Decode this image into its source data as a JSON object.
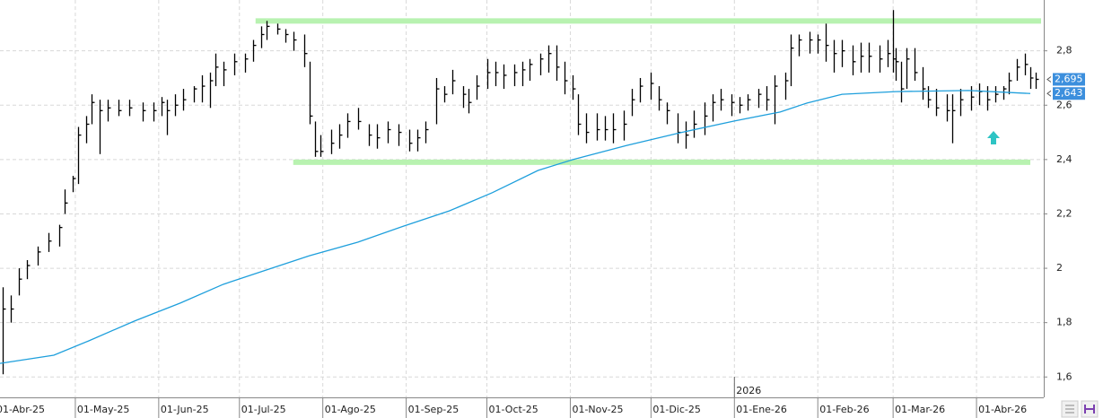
{
  "chart_data": {
    "type": "ohlc",
    "x": [
      3,
      6,
      9,
      12,
      16,
      20,
      24,
      26,
      29,
      31,
      34,
      36,
      39,
      42,
      46,
      50,
      55,
      59,
      62,
      64,
      67,
      70,
      74,
      77,
      80,
      82,
      85,
      89,
      93,
      96,
      99,
      101,
      105,
      108,
      111,
      115,
      117,
      119,
      121,
      125,
      128,
      131,
      135,
      139,
      142,
      146,
      150,
      154,
      157,
      160,
      164,
      167,
      170,
      174,
      176,
      179,
      183,
      186,
      189,
      193,
      196,
      199,
      203,
      206,
      209,
      212,
      215,
      217,
      220,
      224,
      227,
      230,
      234,
      237,
      240,
      244,
      247,
      250,
      254,
      257,
      260,
      264,
      267,
      270,
      274,
      277,
      280,
      284,
      287,
      290,
      294,
      296,
      299,
      303,
      306,
      309,
      312,
      315,
      319,
      322,
      325,
      329,
      332,
      334,
      335,
      337,
      339,
      342,
      345,
      347,
      350,
      354,
      356,
      359,
      363,
      366,
      369,
      372,
      375,
      377,
      380,
      383,
      385,
      387
    ],
    "high": [
      1.93,
      1.9,
      2.0,
      2.03,
      2.08,
      2.13,
      2.16,
      2.29,
      2.34,
      2.52,
      2.56,
      2.64,
      2.62,
      2.62,
      2.62,
      2.62,
      2.61,
      2.61,
      2.63,
      2.62,
      2.64,
      2.66,
      2.67,
      2.71,
      2.72,
      2.79,
      2.76,
      2.79,
      2.79,
      2.84,
      2.89,
      2.91,
      2.9,
      2.88,
      2.87,
      2.86,
      2.76,
      2.54,
      2.49,
      2.51,
      2.53,
      2.57,
      2.59,
      2.53,
      2.53,
      2.54,
      2.53,
      2.51,
      2.51,
      2.54,
      2.7,
      2.67,
      2.73,
      2.67,
      2.66,
      2.71,
      2.77,
      2.76,
      2.75,
      2.75,
      2.76,
      2.77,
      2.79,
      2.82,
      2.82,
      2.76,
      2.71,
      2.64,
      2.57,
      2.57,
      2.56,
      2.57,
      2.58,
      2.66,
      2.7,
      2.72,
      2.67,
      2.61,
      2.57,
      2.54,
      2.58,
      2.61,
      2.64,
      2.66,
      2.64,
      2.63,
      2.64,
      2.66,
      2.67,
      2.71,
      2.72,
      2.86,
      2.86,
      2.87,
      2.86,
      2.9,
      2.84,
      2.84,
      2.82,
      2.83,
      2.83,
      2.82,
      2.84,
      2.95,
      2.81,
      2.76,
      2.81,
      2.81,
      2.74,
      2.67,
      2.66,
      2.64,
      2.64,
      2.66,
      2.67,
      2.68,
      2.67,
      2.67,
      2.67,
      2.72,
      2.77,
      2.79,
      2.74,
      2.72
    ],
    "low": [
      1.61,
      1.8,
      1.9,
      1.96,
      2.01,
      2.06,
      2.08,
      2.2,
      2.28,
      2.31,
      2.46,
      2.53,
      2.42,
      2.54,
      2.56,
      2.56,
      2.54,
      2.54,
      2.56,
      2.49,
      2.56,
      2.58,
      2.61,
      2.61,
      2.59,
      2.67,
      2.67,
      2.71,
      2.72,
      2.76,
      2.81,
      2.84,
      2.86,
      2.83,
      2.8,
      2.74,
      2.53,
      2.41,
      2.41,
      2.42,
      2.44,
      2.48,
      2.51,
      2.45,
      2.44,
      2.46,
      2.45,
      2.43,
      2.43,
      2.46,
      2.53,
      2.61,
      2.64,
      2.59,
      2.57,
      2.62,
      2.66,
      2.67,
      2.66,
      2.67,
      2.67,
      2.69,
      2.71,
      2.72,
      2.69,
      2.64,
      2.62,
      2.49,
      2.46,
      2.47,
      2.47,
      2.46,
      2.47,
      2.56,
      2.61,
      2.62,
      2.58,
      2.53,
      2.46,
      2.44,
      2.48,
      2.49,
      2.54,
      2.58,
      2.56,
      2.57,
      2.58,
      2.59,
      2.58,
      2.53,
      2.62,
      2.67,
      2.78,
      2.79,
      2.79,
      2.76,
      2.72,
      2.74,
      2.71,
      2.72,
      2.72,
      2.72,
      2.74,
      2.72,
      2.69,
      2.61,
      2.66,
      2.69,
      2.62,
      2.59,
      2.56,
      2.54,
      2.46,
      2.56,
      2.58,
      2.6,
      2.58,
      2.61,
      2.62,
      2.64,
      2.69,
      2.71,
      2.66,
      2.66
    ],
    "close": [
      1.85,
      1.85,
      1.96,
      2.01,
      2.06,
      2.1,
      2.15,
      2.24,
      2.33,
      2.49,
      2.53,
      2.61,
      2.58,
      2.59,
      2.58,
      2.59,
      2.58,
      2.58,
      2.61,
      2.58,
      2.6,
      2.62,
      2.66,
      2.67,
      2.69,
      2.74,
      2.73,
      2.76,
      2.77,
      2.82,
      2.86,
      2.89,
      2.88,
      2.86,
      2.84,
      2.79,
      2.56,
      2.43,
      2.43,
      2.46,
      2.49,
      2.54,
      2.54,
      2.49,
      2.48,
      2.51,
      2.5,
      2.46,
      2.48,
      2.51,
      2.66,
      2.64,
      2.69,
      2.64,
      2.61,
      2.67,
      2.72,
      2.72,
      2.71,
      2.72,
      2.73,
      2.75,
      2.77,
      2.79,
      2.74,
      2.69,
      2.66,
      2.53,
      2.5,
      2.51,
      2.51,
      2.51,
      2.53,
      2.62,
      2.67,
      2.68,
      2.62,
      2.58,
      2.5,
      2.49,
      2.53,
      2.56,
      2.61,
      2.62,
      2.61,
      2.6,
      2.62,
      2.64,
      2.62,
      2.67,
      2.69,
      2.81,
      2.84,
      2.84,
      2.84,
      2.82,
      2.79,
      2.8,
      2.76,
      2.78,
      2.78,
      2.77,
      2.79,
      2.77,
      2.76,
      2.66,
      2.77,
      2.72,
      2.66,
      2.62,
      2.59,
      2.58,
      2.58,
      2.62,
      2.63,
      2.65,
      2.62,
      2.64,
      2.66,
      2.69,
      2.74,
      2.75,
      2.7,
      2.695
    ],
    "color": "#000000",
    "moving_average": {
      "x": [
        2,
        22,
        35,
        52,
        69,
        85,
        102,
        117,
        135,
        152,
        169,
        185,
        202,
        215,
        235,
        255,
        275,
        292,
        302,
        315,
        335,
        362,
        385
      ],
      "values": [
        1.65,
        1.68,
        1.733,
        1.806,
        1.872,
        1.941,
        1.997,
        2.046,
        2.096,
        2.155,
        2.211,
        2.278,
        2.36,
        2.4,
        2.452,
        2.499,
        2.542,
        2.575,
        2.608,
        2.64,
        2.65,
        2.654,
        2.643
      ],
      "color": "#1e9fdc"
    },
    "levels": [
      {
        "value": 2.91,
        "x": [
          97,
          389
        ]
      },
      {
        "value": 2.39,
        "x": [
          111,
          385
        ]
      }
    ],
    "level_color": "#b8f2b0",
    "last_labels": [
      {
        "value": 2.695,
        "label": "2,695"
      },
      {
        "value": 2.643,
        "label": "2,643"
      }
    ],
    "last_label_color": "#3c8fdd",
    "year_marker": "2026",
    "xlim": [
      2,
      390
    ],
    "ylim": [
      1.525,
      2.987
    ],
    "xticks": [
      {
        "value": 0,
        "label": "01-Abr-25"
      },
      {
        "value": 30,
        "label": "01-May-25"
      },
      {
        "value": 61,
        "label": "01-Jun-25"
      },
      {
        "value": 91,
        "label": "01-Jul-25"
      },
      {
        "value": 122,
        "label": "01-Ago-25"
      },
      {
        "value": 153,
        "label": "01-Sep-25"
      },
      {
        "value": 183,
        "label": "01-Oct-25"
      },
      {
        "value": 214,
        "label": "01-Nov-25"
      },
      {
        "value": 244,
        "label": "01-Dic-25"
      },
      {
        "value": 275,
        "label": "01-Ene-26"
      },
      {
        "value": 306,
        "label": "01-Feb-26"
      },
      {
        "value": 334,
        "label": "01-Mar-26"
      },
      {
        "value": 365,
        "label": "01-Abr-26"
      }
    ],
    "yticks": [
      {
        "value": 1.6,
        "label": "1,6"
      },
      {
        "value": 1.8,
        "label": "1,8"
      },
      2,
      {
        "value": 2.2,
        "label": "2,2"
      },
      {
        "value": 2.4,
        "label": "2,4"
      },
      {
        "value": 2.6,
        "label": "2,6"
      },
      {
        "value": 2.8,
        "label": "2,8"
      }
    ],
    "grid": true
  }
}
